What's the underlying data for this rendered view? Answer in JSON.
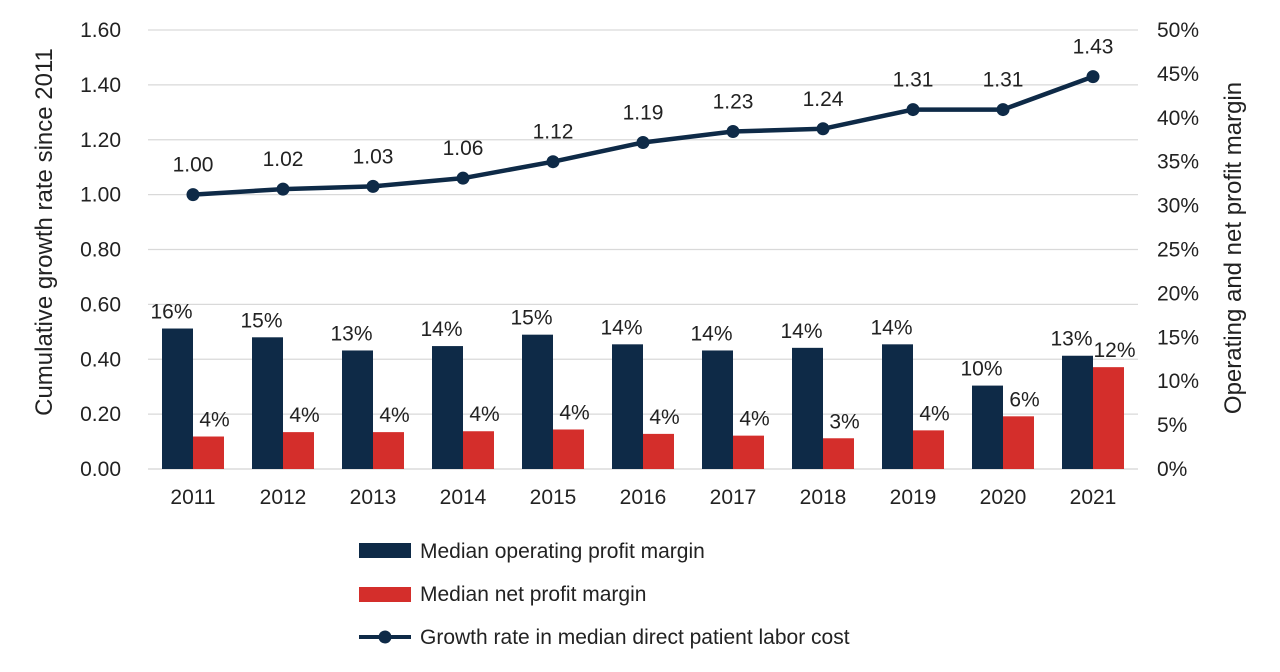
{
  "chart_data": {
    "type": "bar",
    "title": "",
    "categories": [
      "2011",
      "2012",
      "2013",
      "2014",
      "2015",
      "2016",
      "2017",
      "2018",
      "2019",
      "2020",
      "2021"
    ],
    "ylabel": "Cumulative growth rate since 2011",
    "y2label": "Operating and net profit margin",
    "ylim": [
      0,
      1.6
    ],
    "y2lim": [
      0,
      0.5
    ],
    "yticks": [
      "0.00",
      "0.20",
      "0.40",
      "0.60",
      "0.80",
      "1.00",
      "1.20",
      "1.40",
      "1.60"
    ],
    "y2ticks": [
      "0%",
      "5%",
      "10%",
      "15%",
      "20%",
      "25%",
      "30%",
      "35%",
      "40%",
      "45%",
      "50%"
    ],
    "grid": true,
    "legend_position": "bottom",
    "series": [
      {
        "name": "Median operating profit margin",
        "kind": "bar",
        "axis": "right",
        "color": "#0e2a47",
        "values": [
          0.16,
          0.15,
          0.135,
          0.14,
          0.153,
          0.142,
          0.135,
          0.138,
          0.142,
          0.095,
          0.129
        ],
        "labels": [
          "16%",
          "15%",
          "13%",
          "14%",
          "15%",
          "14%",
          "14%",
          "14%",
          "14%",
          "10%",
          "13%"
        ]
      },
      {
        "name": "Median net profit margin",
        "kind": "bar",
        "axis": "right",
        "color": "#d42e2b",
        "values": [
          0.037,
          0.042,
          0.042,
          0.043,
          0.045,
          0.04,
          0.038,
          0.035,
          0.044,
          0.06,
          0.116
        ],
        "labels": [
          "4%",
          "4%",
          "4%",
          "4%",
          "4%",
          "4%",
          "4%",
          "3%",
          "4%",
          "6%",
          "12%"
        ]
      },
      {
        "name": "Growth rate in median direct patient labor cost",
        "kind": "line",
        "axis": "left",
        "color": "#0e2a47",
        "values": [
          1.0,
          1.02,
          1.03,
          1.06,
          1.12,
          1.19,
          1.23,
          1.24,
          1.31,
          1.31,
          1.43
        ],
        "labels": [
          "1.00",
          "1.02",
          "1.03",
          "1.06",
          "1.12",
          "1.19",
          "1.23",
          "1.24",
          "1.31",
          "1.31",
          "1.43"
        ]
      }
    ]
  }
}
